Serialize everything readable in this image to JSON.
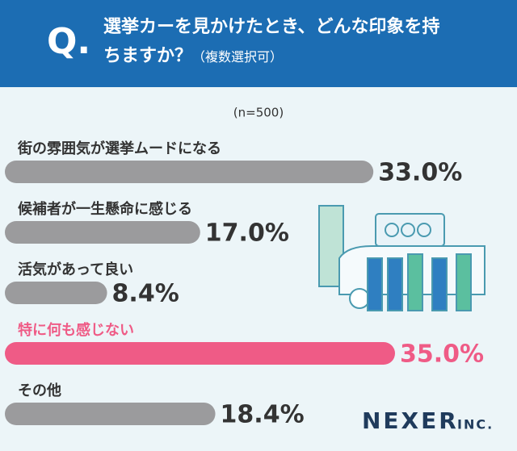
{
  "chart_data": {
    "type": "hbar",
    "q_mark": "Q.",
    "title": "選挙カーを見かけたとき、どんな印象を持ちますか？",
    "subtitle": "（複数選択可）",
    "note": "(n=500)",
    "categories": [
      "街の雰囲気が選挙ムードになる",
      "候補者が一生懸命に感じる",
      "活気があって良い",
      "特に何も感じない",
      "その他"
    ],
    "values": [
      33.0,
      17.0,
      8.4,
      35.0,
      18.4
    ],
    "value_labels": [
      "33.0%",
      "17.0%",
      "8.4%",
      "35.0%",
      "18.4%"
    ],
    "colors": [
      "#9b9b9d",
      "#9b9b9d",
      "#9b9b9d",
      "#ef5b86",
      "#9b9b9d"
    ],
    "label_colors": [
      "#333333",
      "#333333",
      "#333333",
      "#ef5b86",
      "#333333"
    ],
    "brand": "NEXER",
    "brand_suffix": "INC."
  }
}
